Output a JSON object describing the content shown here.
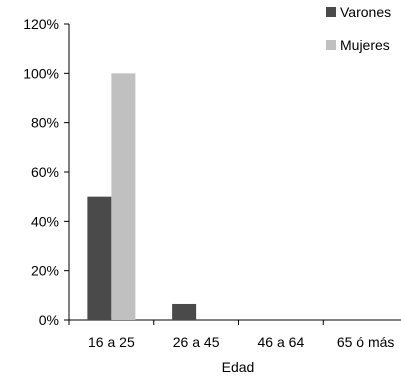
{
  "chart_data": {
    "type": "bar",
    "categories": [
      "16 a 25",
      "26 a 45",
      "46 a 64",
      "65 ó más"
    ],
    "series": [
      {
        "name": "Varones",
        "values": [
          50,
          6.5,
          0,
          0
        ],
        "color": "#4a4a4a"
      },
      {
        "name": "Mujeres",
        "values": [
          100,
          0,
          0,
          0
        ],
        "color": "#c0c0c0"
      }
    ],
    "xlabel": "Edad",
    "ylabel": "",
    "ylim": [
      0,
      120
    ],
    "yticks": [
      "0%",
      "20%",
      "40%",
      "60%",
      "80%",
      "100%",
      "120%"
    ],
    "grid": false,
    "legend_position": "top-right"
  }
}
